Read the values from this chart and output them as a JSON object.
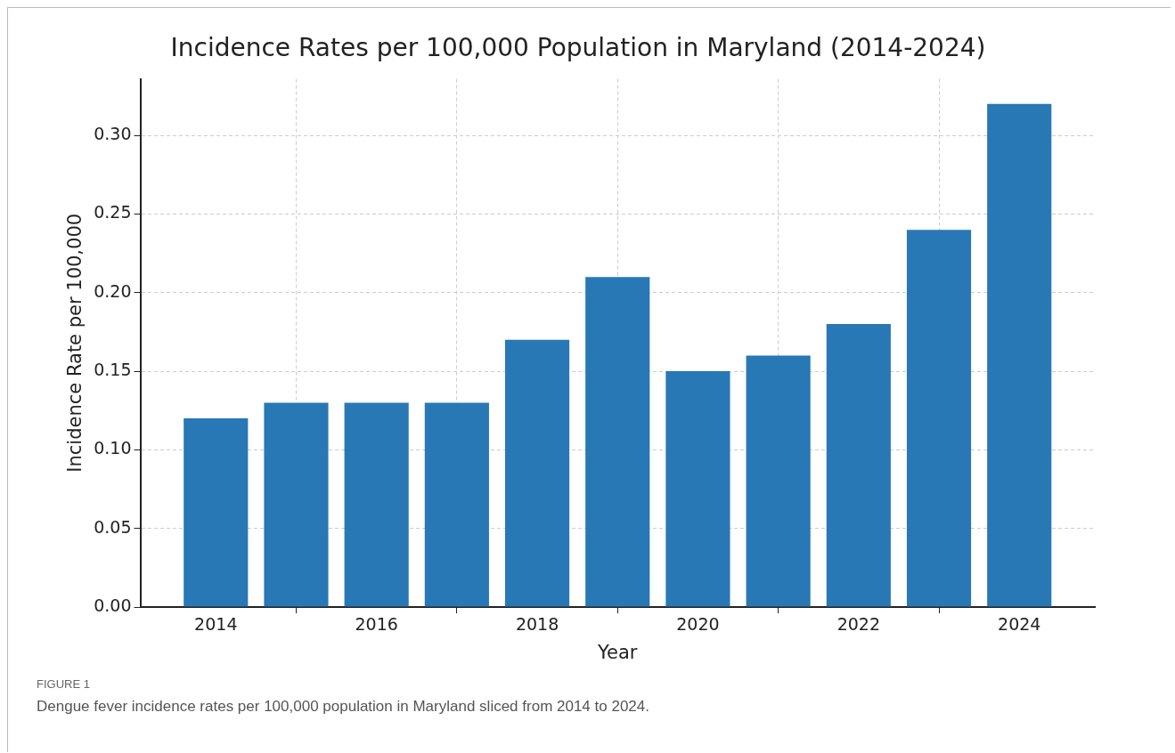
{
  "chart_data": {
    "type": "bar",
    "title": "Incidence Rates per 100,000 Population in Maryland (2014-2024)",
    "xlabel": "Year",
    "ylabel": "Incidence Rate per 100,000",
    "x": [
      2014,
      2015,
      2016,
      2017,
      2018,
      2019,
      2020,
      2021,
      2022,
      2023,
      2024
    ],
    "values": [
      0.12,
      0.13,
      0.13,
      0.13,
      0.17,
      0.21,
      0.15,
      0.16,
      0.18,
      0.24,
      0.32
    ],
    "color": "#2878b5",
    "xlim": [
      2013.06,
      2024.94
    ],
    "xticks": [
      2014,
      2016,
      2018,
      2020,
      2022,
      2024
    ],
    "ylim": [
      0,
      0.336
    ],
    "yticks": [
      {
        "value": 0,
        "label": "0.00"
      },
      {
        "value": 0.05,
        "label": "0.05"
      },
      {
        "value": 0.1,
        "label": "0.10"
      },
      {
        "value": 0.15,
        "label": "0.15"
      },
      {
        "value": 0.2,
        "label": "0.20"
      },
      {
        "value": 0.25,
        "label": "0.25"
      },
      {
        "value": 0.3,
        "label": "0.30"
      }
    ],
    "grid": true,
    "legend": false,
    "annotations": [
      "FIGURE 1",
      "Dengue fever incidence rates per 100,000 population in Maryland sliced from 2014 to 2024."
    ]
  }
}
